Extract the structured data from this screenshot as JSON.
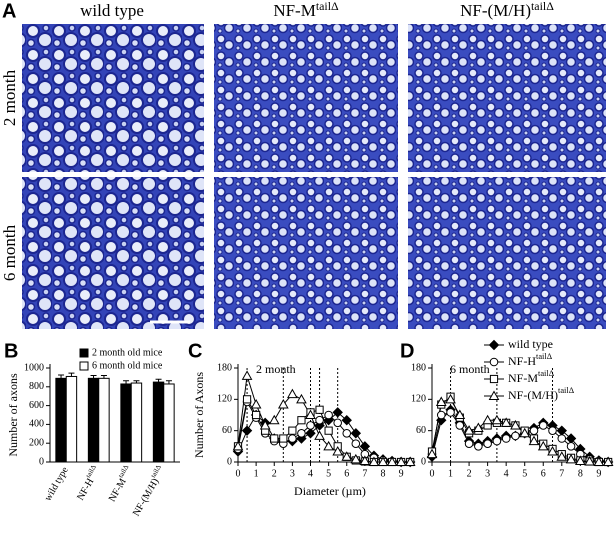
{
  "panel_a": {
    "label": "A",
    "columns": [
      "wild type",
      {
        "text": "NF-M",
        "sup": "tailΔ"
      },
      {
        "text": "NF-(M/H)",
        "sup": "tailΔ"
      }
    ],
    "rows": [
      "2 month",
      "6 month"
    ]
  },
  "chart_data": [
    {
      "type": "bar",
      "label": "B",
      "ylabel": "Number of axons",
      "categories": [
        "wild type",
        {
          "text": "NF-H",
          "sup": "tailΔ"
        },
        {
          "text": "NF-M",
          "sup": "tailΔ"
        },
        {
          "text": "NF-(M/H)",
          "sup": "tailΔ"
        }
      ],
      "series": [
        {
          "name": "2 month old mice",
          "color": "#000000",
          "values": [
            890,
            890,
            830,
            850
          ],
          "errors": [
            35,
            30,
            35,
            30
          ]
        },
        {
          "name": "6 month old mice",
          "color": "#ffffff",
          "values": [
            910,
            890,
            840,
            830
          ],
          "errors": [
            35,
            30,
            25,
            35
          ]
        }
      ],
      "ylim": [
        0,
        1000
      ],
      "yticks": [
        0,
        200,
        400,
        600,
        800,
        1000
      ]
    },
    {
      "type": "line",
      "label": "C",
      "title": "2 month",
      "ylabel": "Number of Axons",
      "xlabel": "Diameter (µm)",
      "x": [
        0,
        0.5,
        1,
        1.5,
        2,
        2.5,
        3,
        3.5,
        4,
        4.5,
        5,
        5.5,
        6,
        6.5,
        7,
        7.5,
        8,
        8.5,
        9,
        9.5
      ],
      "series": [
        {
          "name": "wild type",
          "marker": "diamond",
          "color": "#000000",
          "values": [
            20,
            60,
            90,
            75,
            45,
            40,
            40,
            45,
            55,
            70,
            80,
            95,
            80,
            55,
            30,
            12,
            5,
            2,
            0,
            0
          ]
        },
        {
          "name": "NF-H",
          "name_sup": "tailΔ",
          "marker": "circle",
          "color": "#000000",
          "values": [
            25,
            115,
            85,
            55,
            40,
            35,
            45,
            55,
            70,
            80,
            90,
            75,
            55,
            35,
            15,
            8,
            3,
            1,
            0,
            0
          ]
        },
        {
          "name": "NF-M",
          "name_sup": "tailΔ",
          "marker": "square",
          "color": "#000000",
          "values": [
            30,
            120,
            90,
            60,
            45,
            45,
            60,
            80,
            95,
            100,
            60,
            30,
            10,
            3,
            1,
            0,
            0,
            0,
            0,
            0
          ]
        },
        {
          "name": "NF-(M/H)",
          "name_sup": "tailΔ",
          "marker": "triangle",
          "color": "#000000",
          "values": [
            30,
            165,
            110,
            70,
            80,
            110,
            130,
            120,
            90,
            50,
            30,
            20,
            10,
            5,
            2,
            0,
            0,
            0,
            0,
            0
          ]
        }
      ],
      "guides": [
        0.5,
        2.5,
        4,
        4.5,
        5.5
      ],
      "xlim": [
        0,
        9.6
      ],
      "xticks": [
        0,
        1,
        2,
        3,
        4,
        5,
        6,
        7,
        8,
        9
      ],
      "ylim": [
        0,
        180
      ],
      "yticks": [
        0,
        60,
        120,
        180
      ]
    },
    {
      "type": "line",
      "label": "D",
      "title": "6 month",
      "legend": "top-right",
      "x": [
        0,
        0.5,
        1,
        1.5,
        2,
        2.5,
        3,
        3.5,
        4,
        4.5,
        5,
        5.5,
        6,
        6.5,
        7,
        7.5,
        8,
        8.5,
        9,
        9.5
      ],
      "series": [
        {
          "name": "wild type",
          "marker": "diamond",
          "color": "#000000",
          "values": [
            10,
            80,
            100,
            75,
            40,
            35,
            40,
            45,
            50,
            50,
            55,
            65,
            75,
            70,
            60,
            45,
            25,
            10,
            3,
            0
          ]
        },
        {
          "name": "NF-H",
          "name_sup": "tailΔ",
          "marker": "circle",
          "color": "#000000",
          "values": [
            15,
            90,
            95,
            70,
            35,
            30,
            35,
            40,
            45,
            50,
            55,
            60,
            70,
            60,
            45,
            30,
            15,
            5,
            2,
            0
          ]
        },
        {
          "name": "NF-M",
          "name_sup": "tailΔ",
          "marker": "square",
          "color": "#000000",
          "values": [
            20,
            110,
            125,
            85,
            55,
            60,
            70,
            75,
            75,
            70,
            60,
            45,
            35,
            25,
            15,
            8,
            3,
            1,
            0,
            0
          ]
        },
        {
          "name": "NF-(M/H)",
          "name_sup": "tailΔ",
          "marker": "triangle",
          "color": "#000000",
          "values": [
            15,
            115,
            120,
            90,
            60,
            65,
            80,
            80,
            75,
            70,
            55,
            40,
            30,
            20,
            10,
            5,
            2,
            1,
            0,
            0
          ]
        }
      ],
      "guides": [
        1,
        3.5,
        6.5
      ],
      "xlim": [
        0,
        9.6
      ],
      "xticks": [
        0,
        1,
        2,
        3,
        4,
        5,
        6,
        7,
        8,
        9
      ],
      "ylim": [
        0,
        180
      ],
      "yticks": [
        0,
        60,
        120,
        180
      ]
    }
  ]
}
